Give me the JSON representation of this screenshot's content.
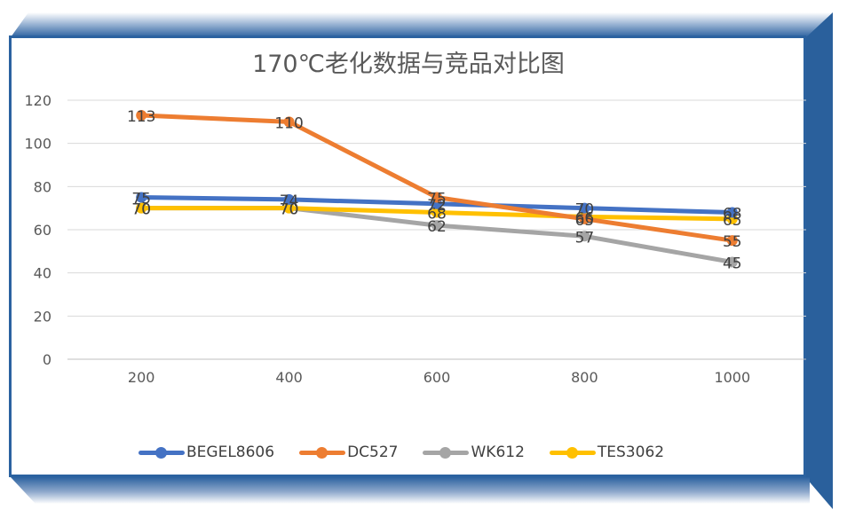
{
  "chart_data": {
    "type": "line",
    "title": "170℃老化数据与竞品对比图",
    "xlabel": "",
    "ylabel": "",
    "categories": [
      "200",
      "400",
      "600",
      "800",
      "1000"
    ],
    "yticks": [
      "0",
      "20",
      "40",
      "60",
      "80",
      "100",
      "120"
    ],
    "ylim": [
      0,
      120
    ],
    "grid": true,
    "legend_position": "bottom",
    "series": [
      {
        "name": "BEGEL8606",
        "color": "#4472c4",
        "values": [
          75,
          74,
          72,
          70,
          68
        ]
      },
      {
        "name": "DC527",
        "color": "#ed7d31",
        "values": [
          113,
          110,
          75,
          65,
          55
        ]
      },
      {
        "name": "WK612",
        "color": "#a5a5a5",
        "values": [
          70,
          70,
          62,
          57,
          45
        ]
      },
      {
        "name": "TES3062",
        "color": "#ffc000",
        "values": [
          70,
          70,
          68,
          66,
          65
        ]
      }
    ]
  }
}
